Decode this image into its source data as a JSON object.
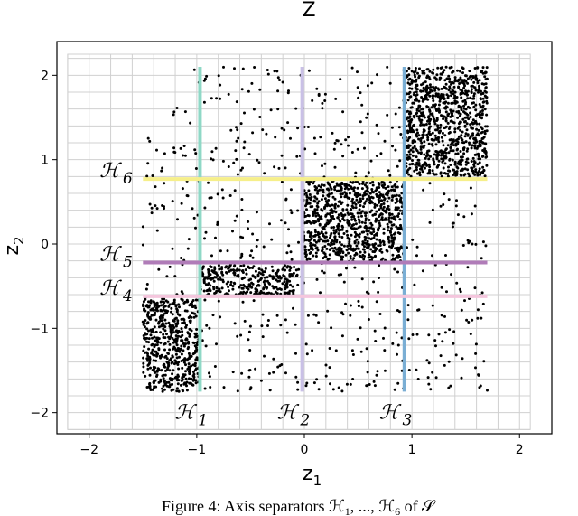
{
  "chart_data": {
    "type": "scatter",
    "title": "Z",
    "xlabel": "z",
    "xlabel_sub": "1",
    "ylabel": "z",
    "ylabel_sub": "2",
    "xlim": [
      -2.3,
      2.3
    ],
    "ylim": [
      -2.25,
      2.4
    ],
    "xticks": [
      -2,
      -1,
      0,
      1,
      2
    ],
    "yticks": [
      -2,
      -1,
      0,
      1,
      2
    ],
    "xtick_labels": [
      "−2",
      "−1",
      "0",
      "1",
      "2"
    ],
    "ytick_labels": [
      "−2",
      "−1",
      "0",
      "1",
      "2"
    ],
    "grid": true,
    "grid_box": {
      "x": [
        -2.2,
        2.1
      ],
      "y": [
        -2.2,
        2.25
      ],
      "step": 0.2
    },
    "scatter_range": {
      "x": [
        -1.5,
        1.7
      ],
      "y": [
        -1.75,
        2.1
      ]
    },
    "dense_regions": [
      {
        "x": [
          -1.5,
          -0.97
        ],
        "y": [
          -1.75,
          -0.65
        ]
      },
      {
        "x": [
          -0.97,
          -0.05
        ],
        "y": [
          -0.6,
          -0.25
        ]
      },
      {
        "x": [
          -0.02,
          0.93
        ],
        "y": [
          -0.2,
          0.75
        ]
      },
      {
        "x": [
          0.93,
          1.7
        ],
        "y": [
          0.8,
          2.1
        ]
      }
    ],
    "separators": [
      {
        "label": "ℋ",
        "sub": "1",
        "orientation": "vertical",
        "value": -0.97,
        "range": [
          -1.75,
          2.1
        ],
        "color": "#8fd8c6"
      },
      {
        "label": "ℋ",
        "sub": "2",
        "orientation": "vertical",
        "value": -0.02,
        "range": [
          -1.75,
          2.1
        ],
        "color": "#c9c0e6"
      },
      {
        "label": "ℋ",
        "sub": "3",
        "orientation": "vertical",
        "value": 0.93,
        "range": [
          -1.75,
          2.1
        ],
        "color": "#7aaed4"
      },
      {
        "label": "ℋ",
        "sub": "4",
        "orientation": "horizontal",
        "value": -0.62,
        "range": [
          -1.5,
          1.7
        ],
        "color": "#f4c6dd"
      },
      {
        "label": "ℋ",
        "sub": "5",
        "orientation": "horizontal",
        "value": -0.22,
        "range": [
          -1.5,
          1.7
        ],
        "color": "#b07cb8"
      },
      {
        "label": "ℋ",
        "sub": "6",
        "orientation": "horizontal",
        "value": 0.77,
        "range": [
          -1.5,
          1.7
        ],
        "color": "#f6ef8a"
      }
    ]
  },
  "caption": {
    "text": "Figure 4: Axis separators ℋ",
    "sub1": "1",
    "mid": ", ..., ℋ",
    "sub2": "6",
    "tail": " of 𝒮"
  }
}
